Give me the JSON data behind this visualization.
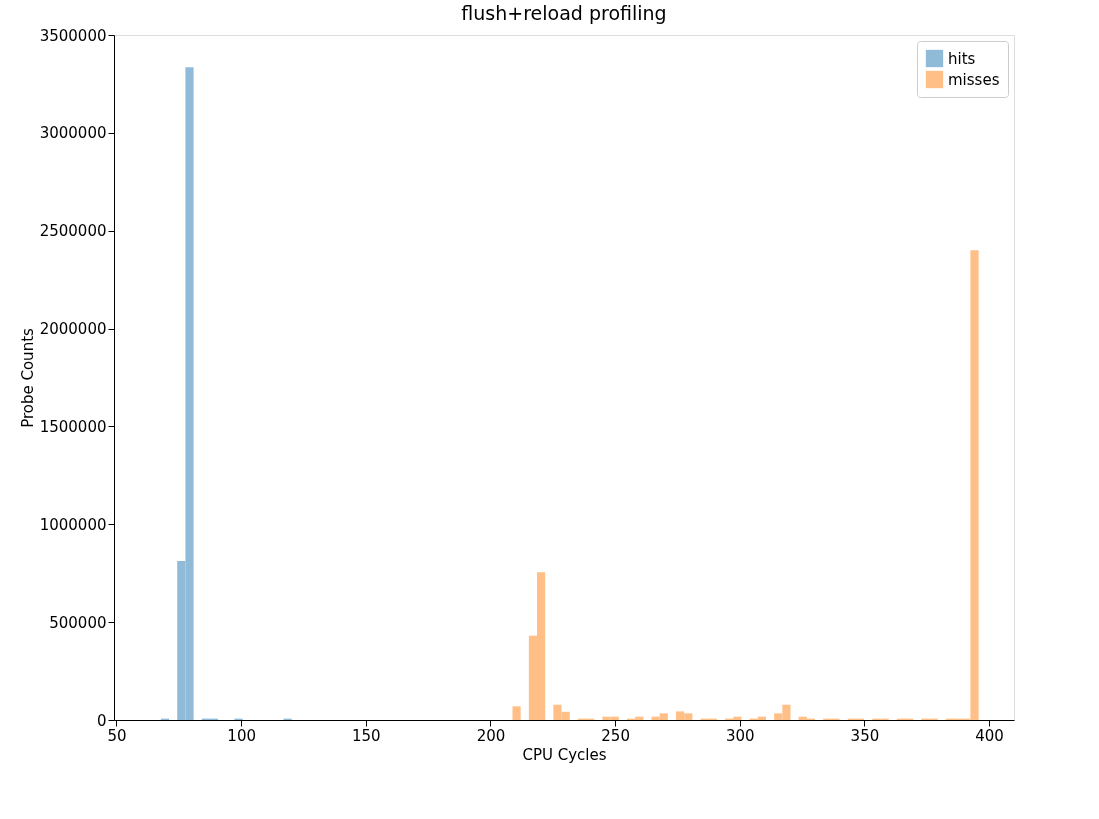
{
  "chart_data": {
    "type": "histogram",
    "title": "flush+reload profiling",
    "xlabel": "CPU Cycles",
    "ylabel": "Probe Counts",
    "xlim": [
      49,
      410
    ],
    "xticks": [
      50,
      100,
      150,
      200,
      250,
      300,
      350,
      400
    ],
    "ylim": [
      0,
      3500000
    ],
    "yticks": [
      0,
      500000,
      1000000,
      1500000,
      2000000,
      2500000,
      3000000,
      3500000
    ],
    "grid": false,
    "legend": "top right",
    "bins": [
      67.8,
      71.08,
      74.36,
      77.64,
      80.92,
      84.2,
      87.48,
      90.76,
      94.04,
      97.32,
      100.6,
      103.88,
      107.16,
      110.44,
      113.72,
      117,
      120.28,
      123.56,
      126.84,
      130.12,
      133.4,
      136.68,
      139.96,
      143.24,
      146.52,
      149.8,
      153.08,
      156.36,
      159.64,
      162.92,
      166.2,
      169.48,
      172.76,
      176.04,
      179.32,
      182.6,
      185.88,
      189.16,
      192.44,
      195.72,
      199,
      202.28,
      205.56,
      208.84,
      212.12,
      215.4,
      218.68,
      221.96,
      225.24,
      228.52,
      231.8,
      235.08,
      238.36,
      241.64,
      244.92,
      248.2,
      251.48,
      254.76,
      258.04,
      261.32,
      264.6,
      267.88,
      271.16,
      274.44,
      277.72,
      281,
      284.28,
      287.56,
      290.84,
      294.12,
      297.4,
      300.68,
      303.96,
      307.24,
      310.52,
      313.8,
      317.08,
      320.36,
      323.64,
      326.92,
      330.2,
      333.48,
      336.76,
      340.04,
      343.32,
      346.6,
      349.88,
      353.16,
      356.44,
      359.72,
      363,
      366.28,
      369.56,
      372.84,
      376.12,
      379.4,
      382.68,
      385.96,
      389.24,
      392.52,
      395.8
    ],
    "series": [
      {
        "name": "hits",
        "color": "#8fbbd9",
        "values": [
          7000,
          0,
          812000,
          3335000,
          0,
          7000,
          7000,
          0,
          0,
          7000,
          0,
          0,
          0,
          0,
          0,
          7000,
          null,
          null,
          null,
          null,
          null,
          null,
          null,
          null,
          null,
          null,
          null,
          null,
          null,
          null,
          null,
          null,
          null,
          null,
          null,
          null,
          null,
          null,
          null,
          null,
          null,
          null,
          null,
          null,
          null,
          null,
          null,
          null,
          null,
          null,
          null,
          null,
          null,
          null,
          null,
          null,
          null,
          null,
          null,
          null,
          null,
          null,
          null,
          null,
          null,
          null,
          null,
          null,
          null,
          null,
          null,
          null,
          null,
          null,
          null,
          null,
          null,
          null,
          null,
          null,
          null,
          null,
          null,
          null,
          null,
          null,
          null,
          null,
          null,
          null,
          null,
          null,
          null,
          null,
          null,
          null,
          null,
          null,
          null,
          null
        ]
      },
      {
        "name": "misses",
        "color": "#ffbf86",
        "values": [
          null,
          null,
          null,
          null,
          null,
          null,
          null,
          null,
          null,
          null,
          null,
          null,
          null,
          null,
          null,
          null,
          null,
          null,
          null,
          null,
          null,
          null,
          null,
          null,
          null,
          null,
          null,
          null,
          null,
          null,
          null,
          null,
          null,
          null,
          null,
          null,
          null,
          null,
          null,
          null,
          null,
          null,
          null,
          70000,
          0,
          431000,
          755000,
          0,
          78000,
          42000,
          0,
          7000,
          7000,
          0,
          17000,
          17000,
          0,
          7000,
          17000,
          0,
          17000,
          34000,
          0,
          44000,
          34000,
          0,
          7000,
          7000,
          0,
          7000,
          17000,
          0,
          7000,
          17000,
          0,
          34000,
          78000,
          0,
          17000,
          7000,
          0,
          7000,
          7000,
          0,
          7000,
          7000,
          0,
          7000,
          7000,
          0,
          7000,
          7000,
          0,
          7000,
          7000,
          0,
          7000,
          7000,
          7000,
          2400000
        ]
      }
    ]
  }
}
